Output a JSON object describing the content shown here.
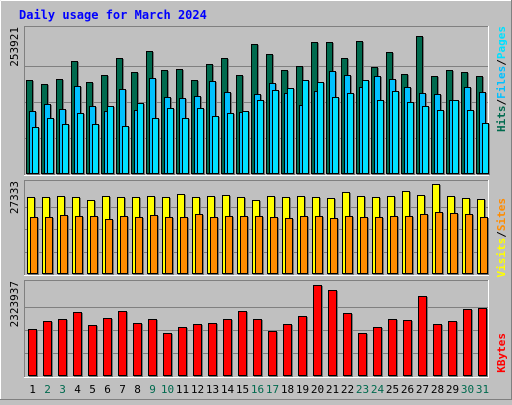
{
  "chart_data": {
    "type": "bar",
    "title": "Daily usage for March 2024",
    "categories": [
      "1",
      "2",
      "3",
      "4",
      "5",
      "6",
      "7",
      "8",
      "9",
      "10",
      "11",
      "12",
      "13",
      "14",
      "15",
      "16",
      "17",
      "18",
      "19",
      "20",
      "21",
      "22",
      "23",
      "24",
      "25",
      "26",
      "27",
      "28",
      "29",
      "30",
      "31"
    ],
    "weekend_days": [
      "2",
      "3",
      "9",
      "10",
      "16",
      "17",
      "23",
      "24",
      "30",
      "31"
    ],
    "panels": [
      {
        "name": "hits-files-pages",
        "ymax_label": "253921",
        "ymax": 253921,
        "right_labels": [
          "Pages",
          "Files",
          "Hits"
        ],
        "series": [
          {
            "name": "Hits",
            "color": "#006a4e",
            "values": [
              166000,
              158000,
              168000,
              199000,
              163000,
              175000,
              205000,
              180000,
              217000,
              183000,
              186000,
              165000,
              194000,
              205000,
              174000,
              230000,
              212000,
              183000,
              190000,
              233000,
              232000,
              205000,
              235000,
              189000,
              216000,
              176000,
              243000,
              173000,
              183000,
              180000,
              173000
            ]
          },
          {
            "name": "Files",
            "color": "#00c0ff",
            "values": [
              111000,
              124000,
              114000,
              155000,
              120000,
              111000,
              150000,
              112000,
              170000,
              136000,
              134000,
              138000,
              164000,
              145000,
              110000,
              141000,
              160000,
              143000,
              122000,
              147000,
              182000,
              174000,
              153000,
              173000,
              168000,
              154000,
              143000,
              141000,
              131000,
              153000,
              144000
            ]
          },
          {
            "name": "Pages",
            "color": "#00e0ff",
            "values": [
              82000,
              98000,
              88000,
              107000,
              88000,
              120000,
              85000,
              126000,
              99000,
              117000,
              99000,
              116000,
              103000,
              108000,
              111000,
              131000,
              149000,
              152000,
              165000,
              163000,
              136000,
              143000,
              166000,
              131000,
              147000,
              127000,
              120000,
              112000,
              131000,
              113000,
              90000
            ]
          }
        ]
      },
      {
        "name": "visits-sites",
        "ymax_label": "27333",
        "ymax": 27333,
        "right_labels": [
          "Sites",
          "Visits"
        ],
        "series": [
          {
            "name": "Visits",
            "color": "#ffff00",
            "values": [
              23500,
              23400,
              23700,
              23500,
              22500,
              23600,
              23300,
              23400,
              23800,
              23500,
              24300,
              23400,
              23600,
              23900,
              23500,
              22400,
              23600,
              23400,
              23700,
              23500,
              23200,
              24800,
              23800,
              23300,
              23700,
              25200,
              24000,
              27300,
              23700,
              23200,
              22900
            ]
          },
          {
            "name": "Sites",
            "color": "#ff8c00",
            "values": [
              17400,
              17200,
              17800,
              17500,
              17600,
              16800,
              17700,
              17200,
              17800,
              17400,
              17400,
              18100,
              17300,
              17600,
              17600,
              17500,
              17200,
              17100,
              17600,
              17600,
              17100,
              17700,
              17400,
              17200,
              17700,
              17600,
              18100,
              18900,
              18600,
              18200,
              17400
            ]
          }
        ]
      },
      {
        "name": "kbytes",
        "ymax_label": "2323937",
        "ymax": 2323937,
        "right_labels": [
          "KBytes"
        ],
        "series": [
          {
            "name": "KBytes",
            "color": "#ff0000",
            "values": [
              1190000,
              1390000,
              1440000,
              1610000,
              1300000,
              1470000,
              1640000,
              1340000,
              1440000,
              1080000,
              1240000,
              1320000,
              1350000,
              1450000,
              1640000,
              1430000,
              1130000,
              1310000,
              1510000,
              2310000,
              2180000,
              1580000,
              1090000,
              1230000,
              1450000,
              1410000,
              2020000,
              1320000,
              1390000,
              1680000,
              1720000
            ]
          }
        ]
      }
    ]
  }
}
